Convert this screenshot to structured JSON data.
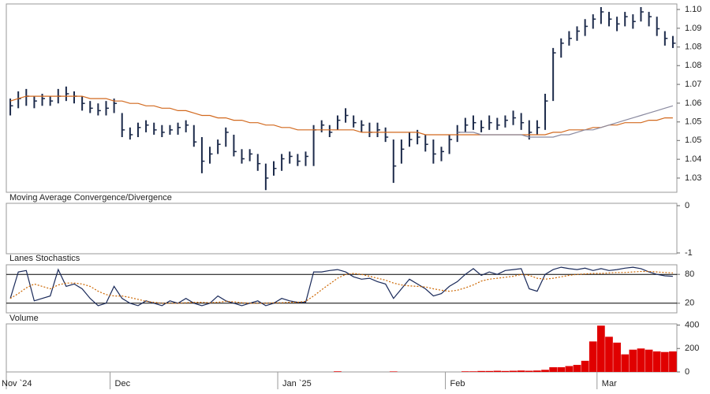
{
  "x_axis": {
    "categories": [
      null,
      null,
      null,
      null,
      null,
      null,
      null,
      null,
      null,
      null,
      null,
      null,
      null,
      null,
      null,
      null,
      null,
      null,
      null,
      null,
      null,
      null,
      null,
      null,
      null,
      null,
      null,
      null,
      null,
      null,
      null,
      null,
      null,
      null,
      null,
      null,
      null,
      null,
      null,
      null,
      null,
      null,
      null,
      null,
      null,
      null,
      null,
      null,
      null,
      null,
      null,
      null,
      null,
      null,
      null,
      null,
      null,
      null,
      null,
      null,
      null,
      null,
      null,
      null,
      null,
      null,
      null,
      null,
      null,
      null,
      null,
      null,
      null,
      null,
      null,
      null,
      null,
      null,
      null,
      null,
      null,
      null,
      null,
      null
    ],
    "ticks": [
      {
        "value": 0,
        "label": "Nov `24"
      },
      {
        "value": 13,
        "label": "Dec"
      },
      {
        "value": 34,
        "label": "Jan `25"
      },
      {
        "value": 55,
        "label": "Feb"
      },
      {
        "value": 74,
        "label": "Mar"
      }
    ]
  },
  "chart_data": [
    {
      "type": "ohlc",
      "color": "#1c2a4a",
      "high": [
        1.063,
        1.066,
        1.067,
        1.064,
        1.065,
        1.064,
        1.067,
        1.068,
        1.066,
        1.064,
        1.062,
        1.061,
        1.062,
        1.063,
        1.057,
        1.051,
        1.053,
        1.054,
        1.053,
        1.052,
        1.052,
        1.053,
        1.054,
        1.052,
        1.047,
        1.043,
        1.046,
        1.051,
        1.048,
        1.042,
        1.042,
        1.04,
        1.036,
        1.037,
        1.04,
        1.041,
        1.04,
        1.041,
        1.052,
        1.054,
        1.052,
        1.056,
        1.059,
        1.056,
        1.054,
        1.053,
        1.053,
        1.051,
        1.046,
        1.046,
        1.049,
        1.05,
        1.048,
        1.046,
        1.043,
        1.048,
        1.052,
        1.055,
        1.056,
        1.054,
        1.056,
        1.055,
        1.056,
        1.058,
        1.057,
        1.054,
        1.054,
        1.065,
        1.084,
        1.088,
        1.091,
        1.093,
        1.096,
        1.098,
        1.101,
        1.099,
        1.097,
        1.099,
        1.098,
        1.101,
        1.099,
        1.097,
        1.091,
        1.089
      ],
      "low": [
        1.056,
        1.059,
        1.06,
        1.059,
        1.06,
        1.06,
        1.061,
        1.062,
        1.061,
        1.058,
        1.057,
        1.056,
        1.056,
        1.057,
        1.047,
        1.046,
        1.047,
        1.049,
        1.048,
        1.047,
        1.048,
        1.048,
        1.049,
        1.043,
        1.032,
        1.036,
        1.04,
        1.043,
        1.039,
        1.036,
        1.037,
        1.033,
        1.025,
        1.031,
        1.033,
        1.036,
        1.035,
        1.035,
        1.035,
        1.049,
        1.047,
        1.05,
        1.053,
        1.051,
        1.049,
        1.047,
        1.047,
        1.045,
        1.028,
        1.036,
        1.043,
        1.044,
        1.041,
        1.036,
        1.037,
        1.04,
        1.045,
        1.049,
        1.05,
        1.049,
        1.05,
        1.05,
        1.051,
        1.052,
        1.05,
        1.046,
        1.048,
        1.05,
        1.062,
        1.08,
        1.085,
        1.087,
        1.089,
        1.092,
        1.094,
        1.093,
        1.091,
        1.093,
        1.092,
        1.095,
        1.093,
        1.089,
        1.085,
        1.084
      ],
      "close": [
        1.06,
        1.063,
        1.064,
        1.062,
        1.063,
        1.062,
        1.064,
        1.065,
        1.064,
        1.061,
        1.059,
        1.058,
        1.059,
        1.061,
        1.05,
        1.048,
        1.051,
        1.052,
        1.05,
        1.049,
        1.05,
        1.051,
        1.052,
        1.045,
        1.037,
        1.04,
        1.044,
        1.049,
        1.041,
        1.038,
        1.04,
        1.036,
        1.03,
        1.034,
        1.038,
        1.039,
        1.037,
        1.039,
        1.05,
        1.052,
        1.049,
        1.054,
        1.056,
        1.053,
        1.052,
        1.049,
        1.05,
        1.047,
        1.035,
        1.042,
        1.046,
        1.047,
        1.044,
        1.04,
        1.041,
        1.046,
        1.049,
        1.052,
        1.053,
        1.051,
        1.053,
        1.052,
        1.054,
        1.055,
        1.053,
        1.049,
        1.051,
        1.062,
        1.082,
        1.086,
        1.088,
        1.091,
        1.093,
        1.096,
        1.099,
        1.096,
        1.094,
        1.097,
        1.095,
        1.099,
        1.097,
        1.092,
        1.088,
        1.086
      ],
      "series": [
        {
          "color": "#d2691e",
          "values": [
            1.062,
            1.063,
            1.064,
            1.064,
            1.064,
            1.064,
            1.064,
            1.064,
            1.064,
            1.064,
            1.063,
            1.063,
            1.063,
            1.062,
            1.062,
            1.061,
            1.061,
            1.06,
            1.06,
            1.059,
            1.059,
            1.058,
            1.058,
            1.057,
            1.056,
            1.056,
            1.055,
            1.055,
            1.054,
            1.054,
            1.053,
            1.053,
            1.052,
            1.052,
            1.051,
            1.051,
            1.05,
            1.05,
            1.05,
            1.05,
            1.05,
            1.05,
            1.05,
            1.05,
            1.049,
            1.049,
            1.049,
            1.049,
            1.049,
            1.049,
            1.049,
            1.049,
            1.048,
            1.048,
            1.048,
            1.048,
            1.048,
            1.048,
            1.048,
            1.048,
            1.048,
            1.048,
            1.048,
            1.048,
            1.048,
            1.048,
            1.048,
            1.048,
            1.049,
            1.049,
            1.05,
            1.05,
            1.05,
            1.051,
            1.051,
            1.052,
            1.052,
            1.053,
            1.053,
            1.053,
            1.054,
            1.054,
            1.055,
            1.055
          ]
        },
        {
          "color": "#8a8aa0",
          "values": [
            null,
            null,
            null,
            null,
            null,
            null,
            null,
            null,
            null,
            null,
            null,
            null,
            null,
            null,
            null,
            null,
            null,
            null,
            null,
            null,
            null,
            null,
            null,
            null,
            null,
            null,
            null,
            null,
            null,
            null,
            null,
            null,
            null,
            null,
            null,
            null,
            null,
            null,
            null,
            null,
            null,
            null,
            null,
            null,
            null,
            null,
            null,
            null,
            null,
            null,
            null,
            null,
            null,
            null,
            null,
            null,
            1.049,
            1.049,
            1.049,
            1.048,
            1.048,
            1.048,
            1.048,
            1.048,
            1.048,
            1.047,
            1.047,
            1.047,
            1.047,
            1.048,
            1.048,
            1.049,
            1.05,
            1.05,
            1.051,
            1.052,
            1.053,
            1.054,
            1.055,
            1.056,
            1.057,
            1.058,
            1.059,
            1.06
          ]
        }
      ],
      "ylim": [
        1.0241,
        1.1023
      ],
      "yticks": [
        {
          "value": 1.1,
          "label": "1.10"
        },
        {
          "value": 1.0922,
          "label": "1.09"
        },
        {
          "value": 1.0844,
          "label": "1.08"
        },
        {
          "value": 1.0767,
          "label": "1.08"
        },
        {
          "value": 1.0689,
          "label": "1.07"
        },
        {
          "value": 1.0611,
          "label": "1.06"
        },
        {
          "value": 1.0533,
          "label": "1.05"
        },
        {
          "value": 1.0456,
          "label": "1.05"
        },
        {
          "value": 1.0378,
          "label": "1.04"
        },
        1.03
      ]
    },
    {
      "type": "line",
      "title": "Moving Average Convergence/Divergence",
      "ylim": [
        -1.017,
        0.05
      ],
      "yticks": [
        0,
        -1
      ]
    },
    {
      "type": "line",
      "title": "Lanes Stochastics",
      "ylim": [
        0,
        100
      ],
      "yticks": [
        80,
        20
      ],
      "series": [
        {
          "color": "#1a2a5a",
          "values": [
            30,
            85,
            88,
            25,
            30,
            35,
            90,
            55,
            60,
            50,
            30,
            15,
            20,
            55,
            30,
            20,
            15,
            25,
            20,
            15,
            25,
            20,
            30,
            20,
            15,
            20,
            35,
            25,
            20,
            15,
            20,
            25,
            15,
            20,
            30,
            25,
            22,
            22,
            85,
            85,
            88,
            90,
            85,
            75,
            70,
            72,
            65,
            60,
            30,
            50,
            70,
            60,
            50,
            35,
            40,
            55,
            65,
            80,
            92,
            78,
            85,
            80,
            88,
            90,
            92,
            50,
            45,
            80,
            90,
            95,
            92,
            90,
            93,
            88,
            92,
            88,
            90,
            93,
            95,
            92,
            85,
            80,
            77,
            76
          ]
        },
        {
          "color": "#cc6600",
          "values": [
            30,
            40,
            52,
            60,
            55,
            50,
            58,
            62,
            62,
            60,
            55,
            45,
            38,
            35,
            35,
            32,
            28,
            24,
            22,
            20,
            20,
            20,
            21,
            22,
            22,
            21,
            22,
            24,
            23,
            21,
            20,
            20,
            20,
            21,
            21,
            22,
            22,
            24,
            35,
            48,
            60,
            72,
            80,
            82,
            80,
            76,
            72,
            68,
            62,
            58,
            56,
            55,
            54,
            50,
            47,
            45,
            47,
            52,
            58,
            66,
            70,
            72,
            74,
            76,
            80,
            78,
            72,
            70,
            72,
            75,
            78,
            80,
            81,
            82,
            82,
            83,
            84,
            84,
            85,
            86,
            86,
            85,
            84,
            83
          ]
        }
      ]
    },
    {
      "type": "bar",
      "title": "Volume",
      "color": "#e00000",
      "ylim": [
        0,
        410
      ],
      "yticks": [
        400,
        200,
        0
      ],
      "values": [
        0,
        0,
        0,
        0,
        0,
        0,
        0,
        0,
        0,
        0,
        0,
        0,
        0,
        0,
        0,
        0,
        0,
        0,
        0,
        0,
        0,
        0,
        0,
        0,
        0,
        0,
        0,
        0,
        0,
        0,
        0,
        0,
        0,
        0,
        0,
        0,
        0,
        0,
        0,
        0,
        0,
        5,
        0,
        0,
        0,
        0,
        0,
        0,
        4,
        0,
        0,
        0,
        0,
        0,
        0,
        0,
        0,
        5,
        5,
        8,
        8,
        10,
        8,
        10,
        12,
        10,
        12,
        18,
        40,
        40,
        50,
        60,
        95,
        260,
        395,
        300,
        250,
        150,
        190,
        200,
        190,
        175,
        170,
        175
      ]
    }
  ]
}
